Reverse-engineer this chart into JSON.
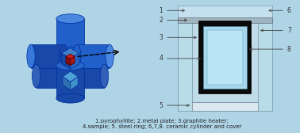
{
  "bg_left": "#aed4e6",
  "bg_right": "#c8e8f4",
  "bg_fig": "#aed4e6",
  "caption": "1.pyrophyllite; 2.metal plate; 3.graphite heater;\n4.sample; 5. steel ring; 6,7,8. ceramic cylinder and cover",
  "caption_fontsize": 5.0,
  "caption_color": "#222222",
  "cyl_body": "#2060c8",
  "cyl_top": "#4080d8",
  "cyl_side": "#4888e0",
  "cyl_edge": "#0030a0",
  "cyl_dark": "#1848a8",
  "cyl_shadow": "#1040a0",
  "hex_top": "#4080c8",
  "hex_left": "#1848a8",
  "hex_right": "#2868c8",
  "hex_bot_top": "#50a0d8",
  "hex_bot_left": "#3070b0",
  "hex_bot_right": "#4090c8",
  "hex_edge": "#0030a0",
  "red_top": "#cc2020",
  "red_left": "#881010",
  "red_right": "#aa1818",
  "red_edge": "#440000",
  "r_outer_fill": "#b8dce8",
  "r_outer_edge": "#80a8b8",
  "r_mid_fill": "#c8e4f0",
  "r_mid_edge": "#80a8b8",
  "r_metal_fill": "#a0b8c8",
  "r_metal_edge": "#607888",
  "r_graphite_fill": "#101010",
  "r_graphite_edge": "#000000",
  "r_inner_fill": "#a8d8ec",
  "r_inner_edge": "#4888a8",
  "r_sample_fill": "#b8e4f4",
  "r_sample_edge": "#4888a8",
  "r_steel_fill": "#dce8ee",
  "r_steel_edge": "#708898",
  "label_color": "#333333",
  "label_fs": 5.5,
  "arrow_color": "#444444",
  "arrow_lw": 0.6
}
